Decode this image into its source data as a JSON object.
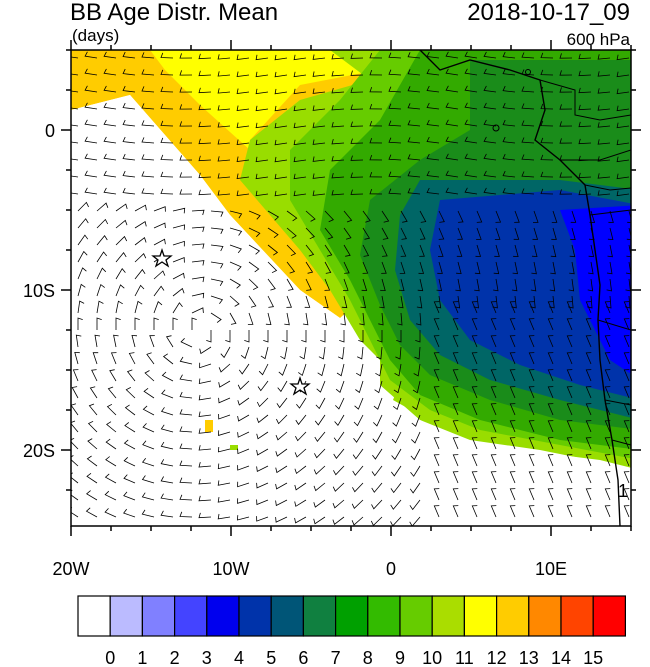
{
  "header": {
    "title": "BB Age Distr. Mean",
    "units": "(days)",
    "datetime": "2018-10-17_09",
    "level": "600 hPa"
  },
  "map": {
    "lat_ticks": [
      "0",
      "10S",
      "20S"
    ],
    "lon_ticks": [
      "20W",
      "10W",
      "0",
      "10E"
    ],
    "colors": {
      "ocean_white": "#ffffff",
      "yellow": "#ffff00",
      "gold": "#ffcc00",
      "lime": "#99dd00",
      "green_light": "#66cc00",
      "green": "#33aa00",
      "green_dark": "#1a8c1a",
      "teal": "#006666",
      "blue_dark": "#0033aa",
      "blue": "#0000ff"
    },
    "markers": [
      "star",
      "star"
    ],
    "annotation": "1"
  },
  "colorbar": {
    "labels": [
      "0",
      "1",
      "2",
      "3",
      "4",
      "5",
      "6",
      "7",
      "8",
      "9",
      "10",
      "11",
      "12",
      "13",
      "14",
      "15"
    ],
    "colors": [
      "#ffffff",
      "#bbbbff",
      "#8080ff",
      "#4444ff",
      "#0000ee",
      "#0033aa",
      "#005577",
      "#108040",
      "#00a000",
      "#33bb00",
      "#66cc00",
      "#aadd00",
      "#ffff00",
      "#ffcc00",
      "#ff8800",
      "#ff4400",
      "#ff0000"
    ]
  }
}
